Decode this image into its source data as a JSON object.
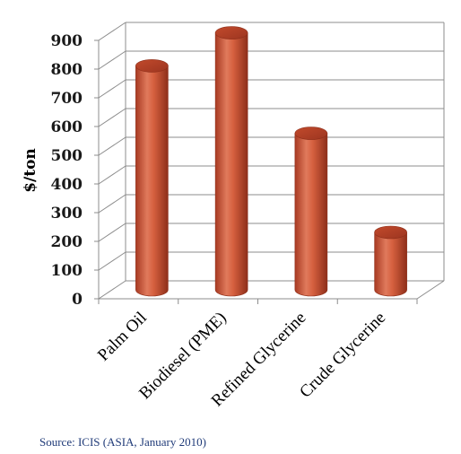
{
  "chart_data": {
    "type": "bar",
    "style": "3d-cylinder",
    "categories": [
      "Palm Oil",
      "Biodiesel (PME)",
      "Refined Glycerine",
      "Crude Glycerine"
    ],
    "values": [
      780,
      895,
      545,
      200
    ],
    "ylabel": "$/ton",
    "ylim": [
      0,
      900
    ],
    "yticks": [
      "0",
      "100",
      "200",
      "300",
      "400",
      "500",
      "600",
      "700",
      "800",
      "900"
    ],
    "grid": true,
    "legend": "none",
    "bar_color": "#cd5a3c",
    "source": "Source: ICIS (ASIA, January 2010)"
  }
}
